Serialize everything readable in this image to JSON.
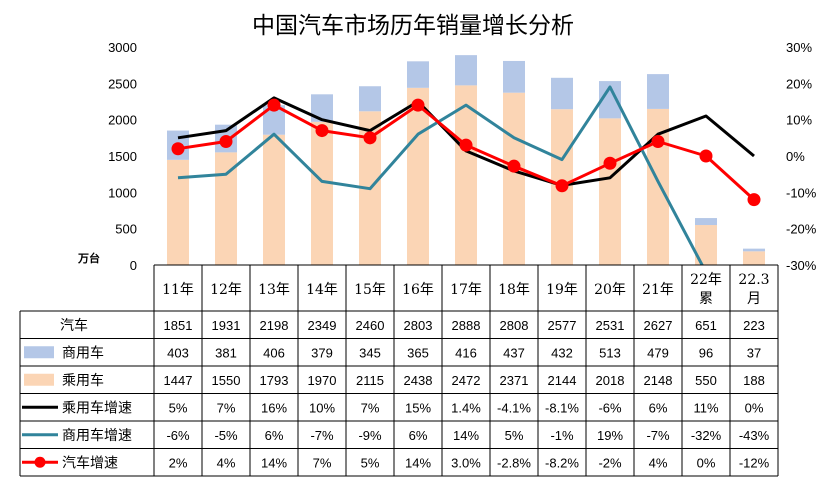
{
  "chart_data": {
    "type": "bar",
    "title": "中国汽车市场历年销量增长分析",
    "unit_label": "万台",
    "categories": [
      {
        "line1": "11年",
        "line2": ""
      },
      {
        "line1": "12年",
        "line2": ""
      },
      {
        "line1": "13年",
        "line2": ""
      },
      {
        "line1": "14年",
        "line2": ""
      },
      {
        "line1": "15年",
        "line2": ""
      },
      {
        "line1": "16年",
        "line2": ""
      },
      {
        "line1": "17年",
        "line2": ""
      },
      {
        "line1": "18年",
        "line2": ""
      },
      {
        "line1": "19年",
        "line2": ""
      },
      {
        "line1": "20年",
        "line2": ""
      },
      {
        "line1": "21年",
        "line2": ""
      },
      {
        "line1": "22年",
        "line2": "累"
      },
      {
        "line1": "22.3",
        "line2": "月"
      }
    ],
    "y_left": {
      "min": 0,
      "max": 3000,
      "step": 500,
      "ticks": [
        "0",
        "500",
        "1000",
        "1500",
        "2000",
        "2500",
        "3000"
      ]
    },
    "y_right": {
      "min": -30,
      "max": 30,
      "step": 10,
      "ticks": [
        "-30%",
        "-20%",
        "-10%",
        "0%",
        "10%",
        "20%",
        "30%"
      ]
    },
    "rows": [
      {
        "name": "汽车",
        "key": "total",
        "kind": "none",
        "color": "",
        "display": [
          "1851",
          "1931",
          "2198",
          "2349",
          "2460",
          "2803",
          "2888",
          "2808",
          "2577",
          "2531",
          "2627",
          "651",
          "223"
        ]
      },
      {
        "name": "商用车",
        "key": "commercial",
        "kind": "bar",
        "color": "#b4c7e7",
        "values": [
          403,
          381,
          406,
          379,
          345,
          365,
          416,
          437,
          432,
          513,
          479,
          96,
          37
        ],
        "display": [
          "403",
          "381",
          "406",
          "379",
          "345",
          "365",
          "416",
          "437",
          "432",
          "513",
          "479",
          "96",
          "37"
        ]
      },
      {
        "name": "乘用车",
        "key": "passenger",
        "kind": "bar",
        "color": "#fbd5b5",
        "values": [
          1447,
          1550,
          1793,
          1970,
          2115,
          2438,
          2472,
          2371,
          2144,
          2018,
          2148,
          550,
          188
        ],
        "display": [
          "1447",
          "1550",
          "1793",
          "1970",
          "2115",
          "2438",
          "2472",
          "2371",
          "2144",
          "2018",
          "2148",
          "550",
          "188"
        ]
      },
      {
        "name": "乘用车增速",
        "key": "passenger_growth",
        "kind": "line",
        "color": "#000000",
        "values": [
          5,
          7,
          16,
          10,
          7,
          15,
          1.4,
          -4.1,
          -8.1,
          -6,
          6,
          11,
          0
        ],
        "display": [
          "5%",
          "7%",
          "16%",
          "10%",
          "7%",
          "15%",
          "1.4%",
          "-4.1%",
          "-8.1%",
          "-6%",
          "6%",
          "11%",
          "0%"
        ]
      },
      {
        "name": "商用车增速",
        "key": "commercial_growth",
        "kind": "line",
        "color": "#31849b",
        "values": [
          -6,
          -5,
          6,
          -7,
          -9,
          6,
          14,
          5,
          -1,
          19,
          -7,
          -32,
          -43
        ],
        "display": [
          "-6%",
          "-5%",
          "6%",
          "-7%",
          "-9%",
          "6%",
          "14%",
          "5%",
          "-1%",
          "19%",
          "-7%",
          "-32%",
          "-43%"
        ]
      },
      {
        "name": "汽车增速",
        "key": "total_growth",
        "kind": "line_marker",
        "color": "#ff0000",
        "values": [
          2,
          4,
          14,
          7,
          5,
          14,
          3.0,
          -2.8,
          -8.2,
          -2,
          4,
          0,
          -12
        ],
        "display": [
          "2%",
          "4%",
          "14%",
          "7%",
          "5%",
          "14%",
          "3.0%",
          "-2.8%",
          "-8.2%",
          "-2%",
          "4%",
          "0%",
          "-12%"
        ]
      }
    ]
  }
}
